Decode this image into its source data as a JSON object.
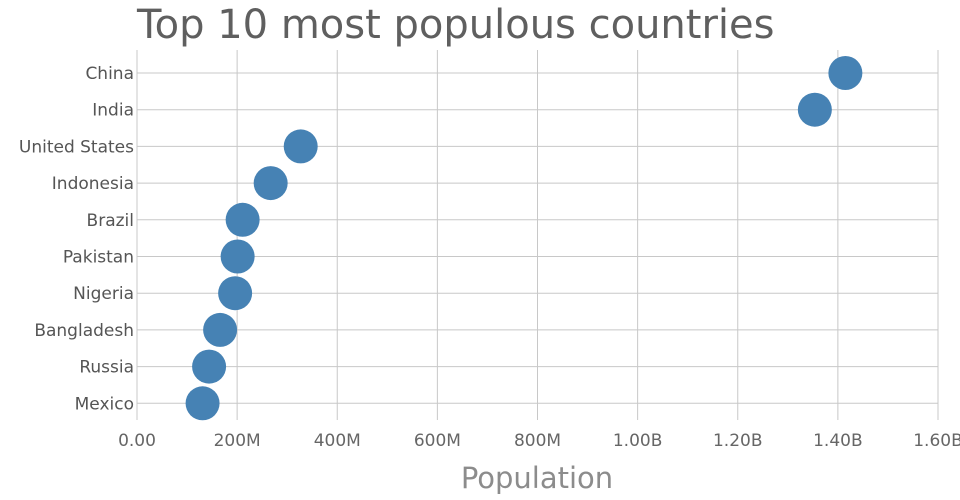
{
  "chart_data": {
    "type": "scatter",
    "title": "Top 10 most populous countries",
    "xlabel": "Population",
    "ylabel": "",
    "categories": [
      "China",
      "India",
      "United States",
      "Indonesia",
      "Brazil",
      "Pakistan",
      "Nigeria",
      "Bangladesh",
      "Russia",
      "Mexico"
    ],
    "values": [
      1415000000,
      1354000000,
      327000000,
      267000000,
      211000000,
      201000000,
      196000000,
      166000000,
      144000000,
      131000000
    ],
    "xlim": [
      0,
      1600000000
    ],
    "xticks": [
      0,
      200000000,
      400000000,
      600000000,
      800000000,
      1000000000,
      1200000000,
      1400000000,
      1600000000
    ],
    "xtick_labels": [
      "0.00",
      "200M",
      "400M",
      "600M",
      "800M",
      "1.00B",
      "1.20B",
      "1.40B",
      "1.60B"
    ],
    "grid": true,
    "marker_color": "#4682b4"
  }
}
